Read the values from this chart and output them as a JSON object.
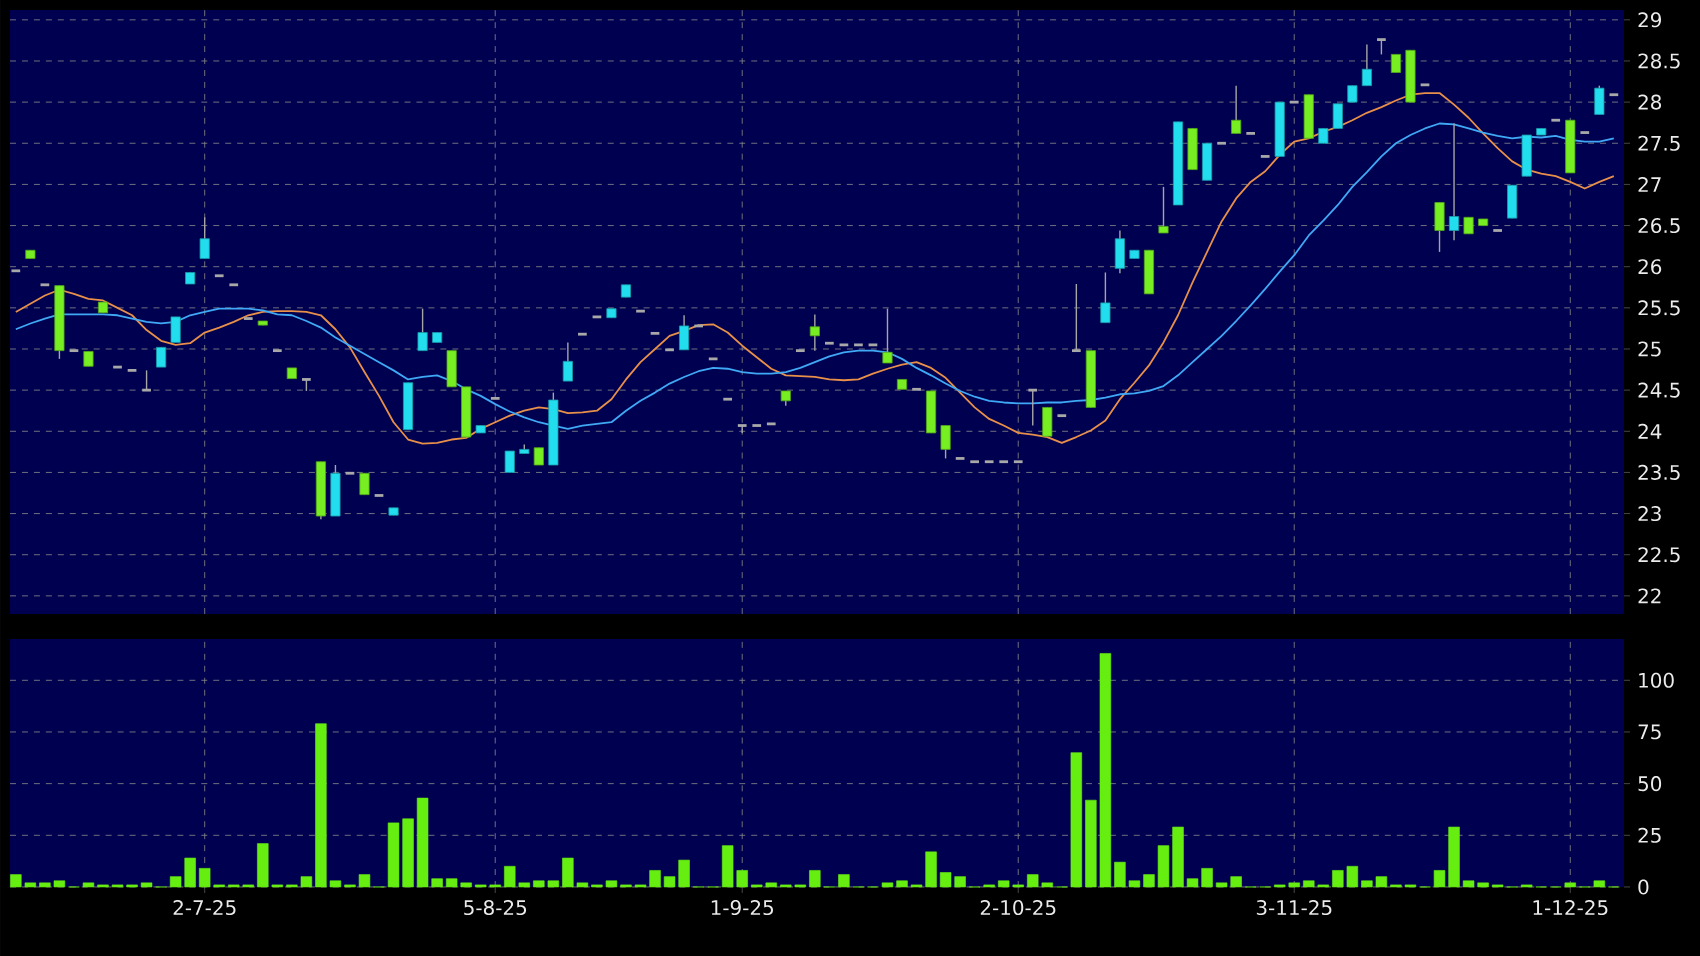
{
  "chart_data": [
    {
      "type": "candlestick",
      "categories": [
        null,
        null,
        null,
        null,
        null,
        null,
        null,
        null,
        null,
        null,
        null,
        null,
        null,
        null,
        null,
        null,
        null,
        null,
        null,
        null,
        null,
        null,
        null,
        null,
        null,
        null,
        null,
        null,
        null,
        null,
        null,
        null,
        null,
        null,
        null,
        null,
        null,
        null,
        null,
        null,
        null,
        null,
        null,
        null,
        null,
        null,
        null,
        null,
        null,
        null,
        null,
        null,
        null,
        null,
        null,
        null,
        null,
        null,
        null,
        null,
        null,
        null,
        null,
        null,
        null,
        null,
        null,
        null,
        null,
        null,
        null,
        null,
        null,
        null,
        null,
        null,
        null,
        null,
        null,
        null,
        null,
        null,
        null,
        null,
        null,
        null,
        null,
        null,
        null,
        null,
        null,
        null,
        null,
        null,
        null,
        null,
        null,
        null,
        null,
        null,
        null,
        null,
        null,
        null,
        null,
        null,
        null,
        null,
        null,
        null,
        null
      ],
      "ohlc": [
        [
          25.95,
          25.95,
          25.95,
          25.95
        ],
        [
          26.2,
          26.2,
          26.1,
          26.1
        ],
        [
          25.78,
          25.78,
          25.78,
          25.78
        ],
        [
          25.77,
          25.77,
          24.88,
          24.98
        ],
        [
          24.98,
          24.98,
          24.98,
          24.98
        ],
        [
          24.97,
          24.97,
          24.79,
          24.79
        ],
        [
          25.57,
          25.57,
          25.44,
          25.44
        ],
        [
          24.78,
          24.78,
          24.78,
          24.78
        ],
        [
          24.74,
          24.74,
          24.74,
          24.74
        ],
        [
          24.5,
          24.74,
          24.5,
          24.5
        ],
        [
          24.78,
          25.02,
          24.78,
          25.02
        ],
        [
          25.08,
          25.39,
          25.08,
          25.39
        ],
        [
          25.79,
          25.93,
          25.79,
          25.93
        ],
        [
          26.1,
          26.6,
          26.1,
          26.34
        ],
        [
          25.89,
          25.89,
          25.89,
          25.89
        ],
        [
          25.78,
          25.78,
          25.78,
          25.78
        ],
        [
          25.37,
          25.37,
          25.37,
          25.37
        ],
        [
          25.34,
          25.34,
          25.29,
          25.29
        ],
        [
          24.98,
          24.98,
          24.98,
          24.98
        ],
        [
          24.77,
          24.77,
          24.64,
          24.64
        ],
        [
          24.63,
          24.63,
          24.49,
          24.63
        ],
        [
          23.63,
          23.63,
          22.93,
          22.97
        ],
        [
          22.97,
          23.59,
          22.97,
          23.49
        ],
        [
          23.49,
          23.49,
          23.49,
          23.49
        ],
        [
          23.49,
          23.49,
          23.23,
          23.23
        ],
        [
          23.22,
          23.22,
          23.22,
          23.22
        ],
        [
          22.98,
          23.07,
          22.98,
          23.07
        ],
        [
          24.02,
          24.59,
          24.02,
          24.59
        ],
        [
          24.98,
          25.49,
          24.98,
          25.2
        ],
        [
          25.08,
          25.2,
          25.08,
          25.2
        ],
        [
          24.98,
          24.98,
          24.54,
          24.54
        ],
        [
          24.54,
          24.54,
          23.93,
          23.93
        ],
        [
          23.98,
          24.07,
          23.98,
          24.07
        ],
        [
          24.4,
          24.4,
          24.4,
          24.4
        ],
        [
          23.5,
          23.76,
          23.5,
          23.76
        ],
        [
          23.73,
          23.84,
          23.73,
          23.78
        ],
        [
          23.8,
          23.8,
          23.59,
          23.59
        ],
        [
          23.59,
          24.47,
          23.59,
          24.38
        ],
        [
          24.61,
          25.08,
          24.61,
          24.85
        ],
        [
          25.18,
          25.18,
          25.18,
          25.18
        ],
        [
          25.39,
          25.39,
          25.39,
          25.39
        ],
        [
          25.38,
          25.49,
          25.38,
          25.49
        ],
        [
          25.63,
          25.78,
          25.63,
          25.78
        ],
        [
          25.46,
          25.46,
          25.46,
          25.46
        ],
        [
          25.19,
          25.19,
          25.19,
          25.19
        ],
        [
          24.99,
          24.99,
          24.99,
          24.99
        ],
        [
          24.99,
          25.41,
          24.99,
          25.28
        ],
        [
          25.28,
          25.28,
          25.28,
          25.28
        ],
        [
          24.88,
          24.88,
          24.88,
          24.88
        ],
        [
          24.39,
          24.39,
          24.39,
          24.39
        ],
        [
          24.07,
          24.07,
          23.98,
          24.07
        ],
        [
          24.07,
          24.07,
          24.07,
          24.07
        ],
        [
          24.09,
          24.09,
          24.09,
          24.09
        ],
        [
          24.49,
          24.49,
          24.31,
          24.37
        ],
        [
          24.98,
          24.98,
          24.98,
          24.98
        ],
        [
          25.27,
          25.42,
          24.98,
          25.16
        ],
        [
          25.07,
          25.07,
          25.07,
          25.07
        ],
        [
          25.05,
          25.05,
          25.05,
          25.05
        ],
        [
          25.05,
          25.05,
          25.05,
          25.05
        ],
        [
          25.05,
          25.05,
          25.05,
          25.05
        ],
        [
          24.96,
          25.49,
          24.83,
          24.83
        ],
        [
          24.63,
          24.63,
          24.51,
          24.51
        ],
        [
          24.51,
          24.51,
          24.51,
          24.51
        ],
        [
          24.49,
          24.49,
          23.98,
          23.98
        ],
        [
          24.07,
          24.07,
          23.67,
          23.78
        ],
        [
          23.67,
          23.67,
          23.67,
          23.67
        ],
        [
          23.63,
          23.63,
          23.63,
          23.63
        ],
        [
          23.63,
          23.63,
          23.63,
          23.63
        ],
        [
          23.63,
          23.63,
          23.63,
          23.63
        ],
        [
          23.63,
          23.63,
          23.63,
          23.63
        ],
        [
          24.5,
          24.5,
          24.07,
          24.5
        ],
        [
          24.29,
          24.29,
          23.94,
          23.94
        ],
        [
          24.19,
          24.19,
          24.19,
          24.19
        ],
        [
          24.98,
          25.79,
          24.98,
          24.98
        ],
        [
          24.98,
          24.98,
          24.29,
          24.29
        ],
        [
          25.32,
          25.93,
          25.32,
          25.56
        ],
        [
          25.98,
          26.44,
          25.92,
          26.34
        ],
        [
          26.1,
          26.2,
          26.1,
          26.2
        ],
        [
          26.2,
          26.2,
          25.67,
          25.67
        ],
        [
          26.49,
          26.97,
          26.41,
          26.41
        ],
        [
          26.75,
          27.76,
          26.75,
          27.76
        ],
        [
          27.68,
          27.68,
          27.18,
          27.18
        ],
        [
          27.05,
          27.5,
          27.05,
          27.5
        ],
        [
          27.5,
          27.5,
          27.5,
          27.5
        ],
        [
          27.78,
          28.2,
          27.62,
          27.62
        ],
        [
          27.62,
          27.62,
          27.62,
          27.62
        ],
        [
          27.34,
          27.34,
          27.34,
          27.34
        ],
        [
          27.34,
          28.0,
          27.34,
          28.0
        ],
        [
          28.0,
          28.0,
          28.0,
          28.0
        ],
        [
          28.09,
          28.09,
          27.56,
          27.56
        ],
        [
          27.5,
          27.68,
          27.5,
          27.68
        ],
        [
          27.68,
          27.98,
          27.68,
          27.98
        ],
        [
          28.0,
          28.2,
          28.0,
          28.2
        ],
        [
          28.2,
          28.7,
          28.2,
          28.4
        ],
        [
          28.76,
          28.76,
          28.58,
          28.76
        ],
        [
          28.58,
          28.58,
          28.36,
          28.36
        ],
        [
          28.63,
          28.63,
          28.0,
          28.0
        ],
        [
          28.21,
          28.21,
          28.21,
          28.21
        ],
        [
          26.78,
          26.78,
          26.18,
          26.44
        ],
        [
          26.44,
          27.74,
          26.32,
          26.61
        ],
        [
          26.6,
          26.6,
          26.4,
          26.4
        ],
        [
          26.58,
          26.58,
          26.5,
          26.5
        ],
        [
          26.44,
          26.44,
          26.44,
          26.44
        ],
        [
          26.59,
          26.99,
          26.59,
          26.99
        ],
        [
          27.1,
          27.6,
          27.1,
          27.6
        ],
        [
          27.6,
          27.68,
          27.6,
          27.68
        ],
        [
          27.78,
          27.78,
          27.78,
          27.78
        ],
        [
          27.78,
          27.78,
          27.14,
          27.14
        ],
        [
          27.63,
          27.63,
          27.63,
          27.63
        ],
        [
          27.85,
          28.2,
          27.85,
          28.17
        ],
        [
          28.09,
          28.09,
          28.09,
          28.09
        ]
      ],
      "colors": [
        "#a8a8a8",
        "#77ee22",
        "#a8a8a8",
        "#77ee22",
        "#a8a8a8",
        "#77ee22",
        "#77ee22",
        "#a8a8a8",
        "#a8a8a8",
        "#a8a8a8",
        "#22ddee",
        "#22ddee",
        "#22ddee",
        "#22ddee",
        "#a8a8a8",
        "#a8a8a8",
        "#a8a8a8",
        "#77ee22",
        "#a8a8a8",
        "#77ee22",
        "#a8a8a8",
        "#77ee22",
        "#22ddee",
        "#a8a8a8",
        "#77ee22",
        "#a8a8a8",
        "#22ddee",
        "#22ddee",
        "#22ddee",
        "#22ddee",
        "#77ee22",
        "#77ee22",
        "#22ddee",
        "#a8a8a8",
        "#22ddee",
        "#22ddee",
        "#77ee22",
        "#22ddee",
        "#22ddee",
        "#a8a8a8",
        "#a8a8a8",
        "#22ddee",
        "#22ddee",
        "#a8a8a8",
        "#a8a8a8",
        "#a8a8a8",
        "#22ddee",
        "#a8a8a8",
        "#a8a8a8",
        "#a8a8a8",
        "#a8a8a8",
        "#a8a8a8",
        "#a8a8a8",
        "#77ee22",
        "#a8a8a8",
        "#77ee22",
        "#a8a8a8",
        "#a8a8a8",
        "#a8a8a8",
        "#a8a8a8",
        "#77ee22",
        "#77ee22",
        "#a8a8a8",
        "#77ee22",
        "#77ee22",
        "#a8a8a8",
        "#a8a8a8",
        "#a8a8a8",
        "#a8a8a8",
        "#a8a8a8",
        "#a8a8a8",
        "#77ee22",
        "#a8a8a8",
        "#a8a8a8",
        "#77ee22",
        "#22ddee",
        "#22ddee",
        "#22ddee",
        "#77ee22",
        "#77ee22",
        "#22ddee",
        "#77ee22",
        "#22ddee",
        "#a8a8a8",
        "#77ee22",
        "#a8a8a8",
        "#a8a8a8",
        "#22ddee",
        "#a8a8a8",
        "#77ee22",
        "#22ddee",
        "#22ddee",
        "#22ddee",
        "#22ddee",
        "#a8a8a8",
        "#77ee22",
        "#77ee22",
        "#a8a8a8",
        "#77ee22",
        "#22ddee",
        "#77ee22",
        "#77ee22",
        "#a8a8a8",
        "#22ddee",
        "#22ddee",
        "#22ddee",
        "#a8a8a8",
        "#77ee22",
        "#a8a8a8",
        "#22ddee",
        "#a8a8a8"
      ],
      "series": [
        {
          "type": "line",
          "color": "#e8904a",
          "values": [
            25.45,
            25.55,
            25.65,
            25.72,
            25.67,
            25.61,
            25.59,
            25.5,
            25.41,
            25.23,
            25.1,
            25.05,
            25.07,
            25.2,
            25.26,
            25.33,
            25.41,
            25.45,
            25.46,
            25.46,
            25.45,
            25.41,
            25.24,
            25.02,
            24.72,
            24.43,
            24.11,
            23.9,
            23.85,
            23.86,
            23.9,
            23.92,
            24.03,
            24.11,
            24.19,
            24.25,
            24.29,
            24.27,
            24.22,
            24.23,
            24.25,
            24.39,
            24.63,
            24.84,
            25.0,
            25.16,
            25.22,
            25.29,
            25.3,
            25.2,
            25.04,
            24.9,
            24.76,
            24.68,
            24.67,
            24.66,
            24.63,
            24.62,
            24.63,
            24.7,
            24.76,
            24.81,
            24.84,
            24.77,
            24.65,
            24.47,
            24.29,
            24.15,
            24.07,
            23.98,
            23.96,
            23.93,
            23.86,
            23.93,
            24.01,
            24.13,
            24.39,
            24.59,
            24.8,
            25.08,
            25.41,
            25.81,
            26.18,
            26.55,
            26.83,
            27.03,
            27.16,
            27.36,
            27.52,
            27.56,
            27.64,
            27.7,
            27.78,
            27.87,
            27.94,
            28.02,
            28.09,
            28.11,
            28.11,
            27.97,
            27.81,
            27.62,
            27.44,
            27.28,
            27.18,
            27.13,
            27.1,
            27.03,
            26.95,
            27.03,
            27.1
          ]
        },
        {
          "type": "line",
          "color": "#3fa9f5",
          "values": [
            25.24,
            25.31,
            25.37,
            25.42,
            25.42,
            25.42,
            25.42,
            25.41,
            25.37,
            25.33,
            25.31,
            25.33,
            25.41,
            25.45,
            25.49,
            25.49,
            25.49,
            25.47,
            25.42,
            25.41,
            25.34,
            25.26,
            25.14,
            25.04,
            24.94,
            24.84,
            24.74,
            24.63,
            24.66,
            24.68,
            24.61,
            24.51,
            24.43,
            24.33,
            24.24,
            24.17,
            24.11,
            24.07,
            24.03,
            24.07,
            24.09,
            24.11,
            24.25,
            24.37,
            24.47,
            24.58,
            24.66,
            24.73,
            24.77,
            24.76,
            24.72,
            24.7,
            24.7,
            24.72,
            24.77,
            24.84,
            24.91,
            24.96,
            24.98,
            24.98,
            24.96,
            24.88,
            24.77,
            24.68,
            24.58,
            24.49,
            24.42,
            24.37,
            24.35,
            24.34,
            24.34,
            24.35,
            24.35,
            24.37,
            24.38,
            24.41,
            24.45,
            24.46,
            24.49,
            24.55,
            24.68,
            24.84,
            25.0,
            25.16,
            25.34,
            25.53,
            25.73,
            25.94,
            26.14,
            26.38,
            26.56,
            26.75,
            26.97,
            27.15,
            27.34,
            27.5,
            27.6,
            27.68,
            27.74,
            27.73,
            27.68,
            27.63,
            27.59,
            27.56,
            27.58,
            27.57,
            27.59,
            27.54,
            27.52,
            27.52,
            27.56
          ]
        }
      ],
      "ylim": [
        21.78,
        29.12
      ],
      "yticks": [
        22,
        22.5,
        23,
        23.5,
        24,
        24.5,
        25,
        25.5,
        26,
        26.5,
        27,
        27.5,
        28,
        28.5,
        29
      ],
      "grid": true,
      "tick_labels": "y"
    },
    {
      "type": "bar",
      "categories": [
        null,
        null,
        null,
        null,
        null,
        null,
        null,
        null,
        null,
        null,
        null,
        null,
        null,
        "2-7-25",
        null,
        null,
        null,
        null,
        null,
        null,
        null,
        null,
        null,
        null,
        null,
        null,
        null,
        null,
        null,
        null,
        null,
        null,
        null,
        "5-8-25",
        null,
        null,
        null,
        null,
        null,
        null,
        null,
        null,
        null,
        null,
        null,
        null,
        null,
        null,
        null,
        null,
        "1-9-25",
        null,
        null,
        null,
        null,
        null,
        null,
        null,
        null,
        null,
        null,
        null,
        null,
        null,
        null,
        null,
        null,
        null,
        null,
        "2-10-25",
        null,
        null,
        null,
        null,
        null,
        null,
        null,
        null,
        null,
        null,
        null,
        null,
        null,
        null,
        null,
        null,
        null,
        null,
        "3-11-25",
        null,
        null,
        null,
        null,
        null,
        null,
        null,
        null,
        null,
        null,
        null,
        null,
        null,
        null,
        null,
        null,
        null,
        null,
        "1-12-25",
        null,
        null,
        null
      ],
      "values": [
        6,
        2,
        2,
        3,
        0,
        2,
        1,
        1,
        1,
        2,
        0,
        5,
        14,
        9,
        1,
        1,
        1,
        21,
        1,
        1,
        5,
        79,
        3,
        1,
        6,
        0,
        31,
        33,
        43,
        4,
        4,
        2,
        1,
        1,
        10,
        2,
        3,
        3,
        14,
        2,
        1,
        3,
        1,
        1,
        8,
        5,
        13,
        0,
        0,
        20,
        8,
        1,
        2,
        1,
        1,
        8,
        0,
        6,
        0,
        0,
        2,
        3,
        1,
        17,
        7,
        5,
        0,
        1,
        3,
        1,
        6,
        2,
        0,
        65,
        42,
        113,
        12,
        3,
        6,
        20,
        29,
        4,
        9,
        2,
        5,
        0,
        0,
        1,
        2,
        3,
        1,
        8,
        10,
        3,
        5,
        1,
        1,
        0,
        8,
        29,
        3,
        2,
        1,
        0,
        1,
        0,
        0,
        2,
        0,
        3,
        0
      ],
      "color": "#66ee11",
      "ylim": [
        0,
        120
      ],
      "yticks": [
        0,
        25,
        50,
        75,
        100
      ],
      "grid": true
    }
  ]
}
